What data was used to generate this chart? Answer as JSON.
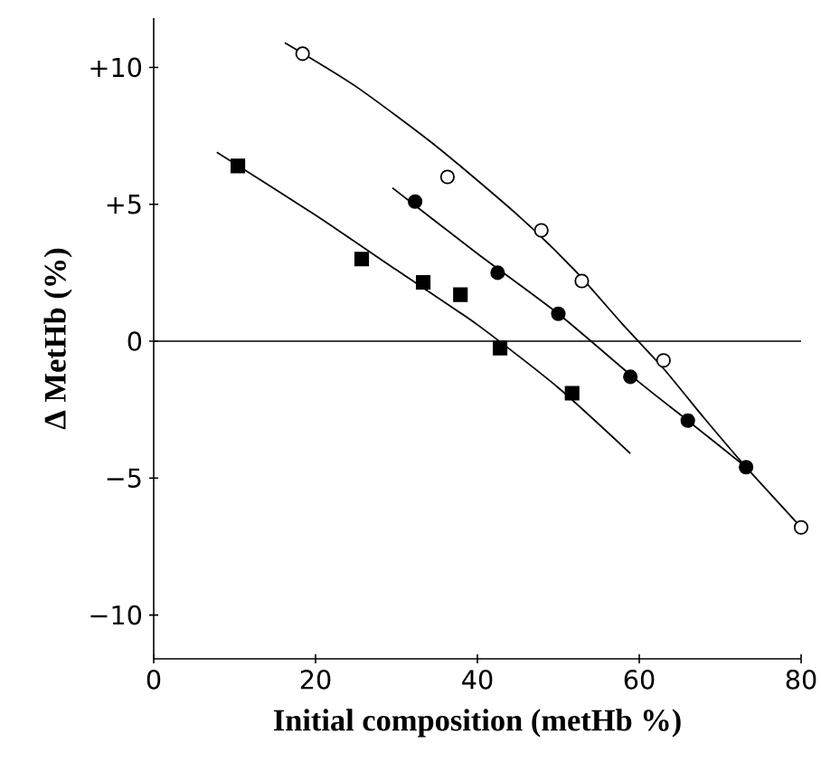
{
  "chart_data": {
    "type": "scatter",
    "xlabel": "Initial composition (metHb %)",
    "ylabel": "Δ MetHb (%)",
    "xlim": [
      0,
      80
    ],
    "ylim": [
      -11.6,
      11.8
    ],
    "xticks": [
      0,
      20,
      40,
      60,
      80
    ],
    "yticks": [
      {
        "value": 10,
        "label": "+10"
      },
      {
        "value": 5,
        "label": "+5"
      },
      {
        "value": 0,
        "label": "0"
      },
      {
        "value": -5,
        "label": "−5"
      },
      {
        "value": -10,
        "label": "−10"
      }
    ],
    "ref_lines": [
      {
        "axis": "y",
        "value": 0,
        "color": "#000000"
      }
    ],
    "series": [
      {
        "marker": "circle",
        "color": "#ffffff",
        "x": [
          18.4,
          36.3,
          47.9,
          52.9,
          63.0,
          80.0
        ],
        "values": [
          10.5,
          6.0,
          4.05,
          2.2,
          -0.7,
          -6.8
        ]
      },
      {
        "marker": "circle",
        "color": "#000000",
        "x": [
          32.3,
          42.5,
          50.0,
          58.9,
          66.0,
          73.2
        ],
        "values": [
          5.1,
          2.5,
          1.0,
          -1.3,
          -2.9,
          -4.6
        ]
      },
      {
        "marker": "square",
        "color": "#000000",
        "x": [
          10.4,
          25.7,
          33.3,
          37.9,
          42.8,
          51.7
        ],
        "values": [
          6.4,
          3.0,
          2.15,
          1.7,
          -0.25,
          -1.9
        ]
      },
      {
        "type": "line",
        "marker": "none",
        "color": "#000000",
        "x": [
          16.2,
          25,
          35,
          45,
          52,
          58,
          63,
          68,
          73.2,
          80
        ],
        "values": [
          10.9,
          9.3,
          7.1,
          4.6,
          2.6,
          0.6,
          -1.0,
          -2.8,
          -4.6,
          -6.8
        ]
      },
      {
        "type": "line",
        "marker": "none",
        "color": "#000000",
        "x": [
          29.5,
          40,
          50,
          60,
          66,
          73.2
        ],
        "values": [
          5.6,
          3.2,
          1.0,
          -1.5,
          -2.9,
          -4.6
        ]
      },
      {
        "type": "line",
        "marker": "none",
        "color": "#000000",
        "x": [
          7.8,
          20,
          30,
          40,
          50,
          58.9
        ],
        "values": [
          6.9,
          4.6,
          2.6,
          0.6,
          -1.7,
          -4.1
        ]
      }
    ]
  }
}
